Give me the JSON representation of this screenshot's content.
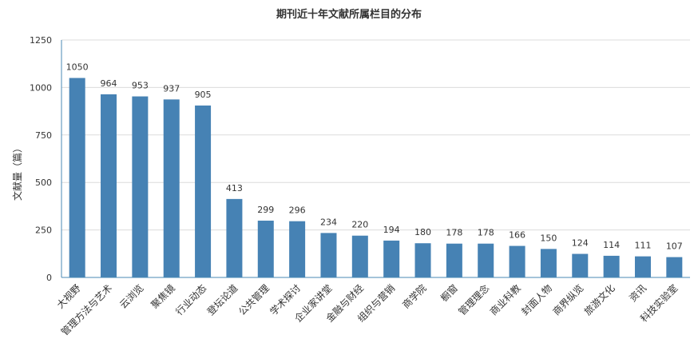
{
  "chart_data": {
    "type": "bar",
    "title": "期刊近十年文献所属栏目的分布",
    "xlabel": "",
    "ylabel": "文献量（篇）",
    "ylim": [
      0,
      1250
    ],
    "yticks": [
      0,
      250,
      500,
      750,
      1000,
      1250
    ],
    "grid": true,
    "legend": "none",
    "bar_color": "#4682b4",
    "categories": [
      "大视野",
      "管理方法与艺术",
      "云浏览",
      "聚焦镜",
      "行业动态",
      "登坛论道",
      "公共管理",
      "学术探讨",
      "企业家讲堂",
      "金融与财经",
      "组织与营销",
      "商学院",
      "橱窗",
      "管理理念",
      "商业科教",
      "封面人物",
      "商界纵览",
      "旅游文化",
      "资讯",
      "科技实验室"
    ],
    "values": [
      1050,
      964,
      953,
      937,
      905,
      413,
      299,
      296,
      234,
      220,
      194,
      180,
      178,
      178,
      166,
      150,
      124,
      114,
      111,
      107
    ]
  }
}
